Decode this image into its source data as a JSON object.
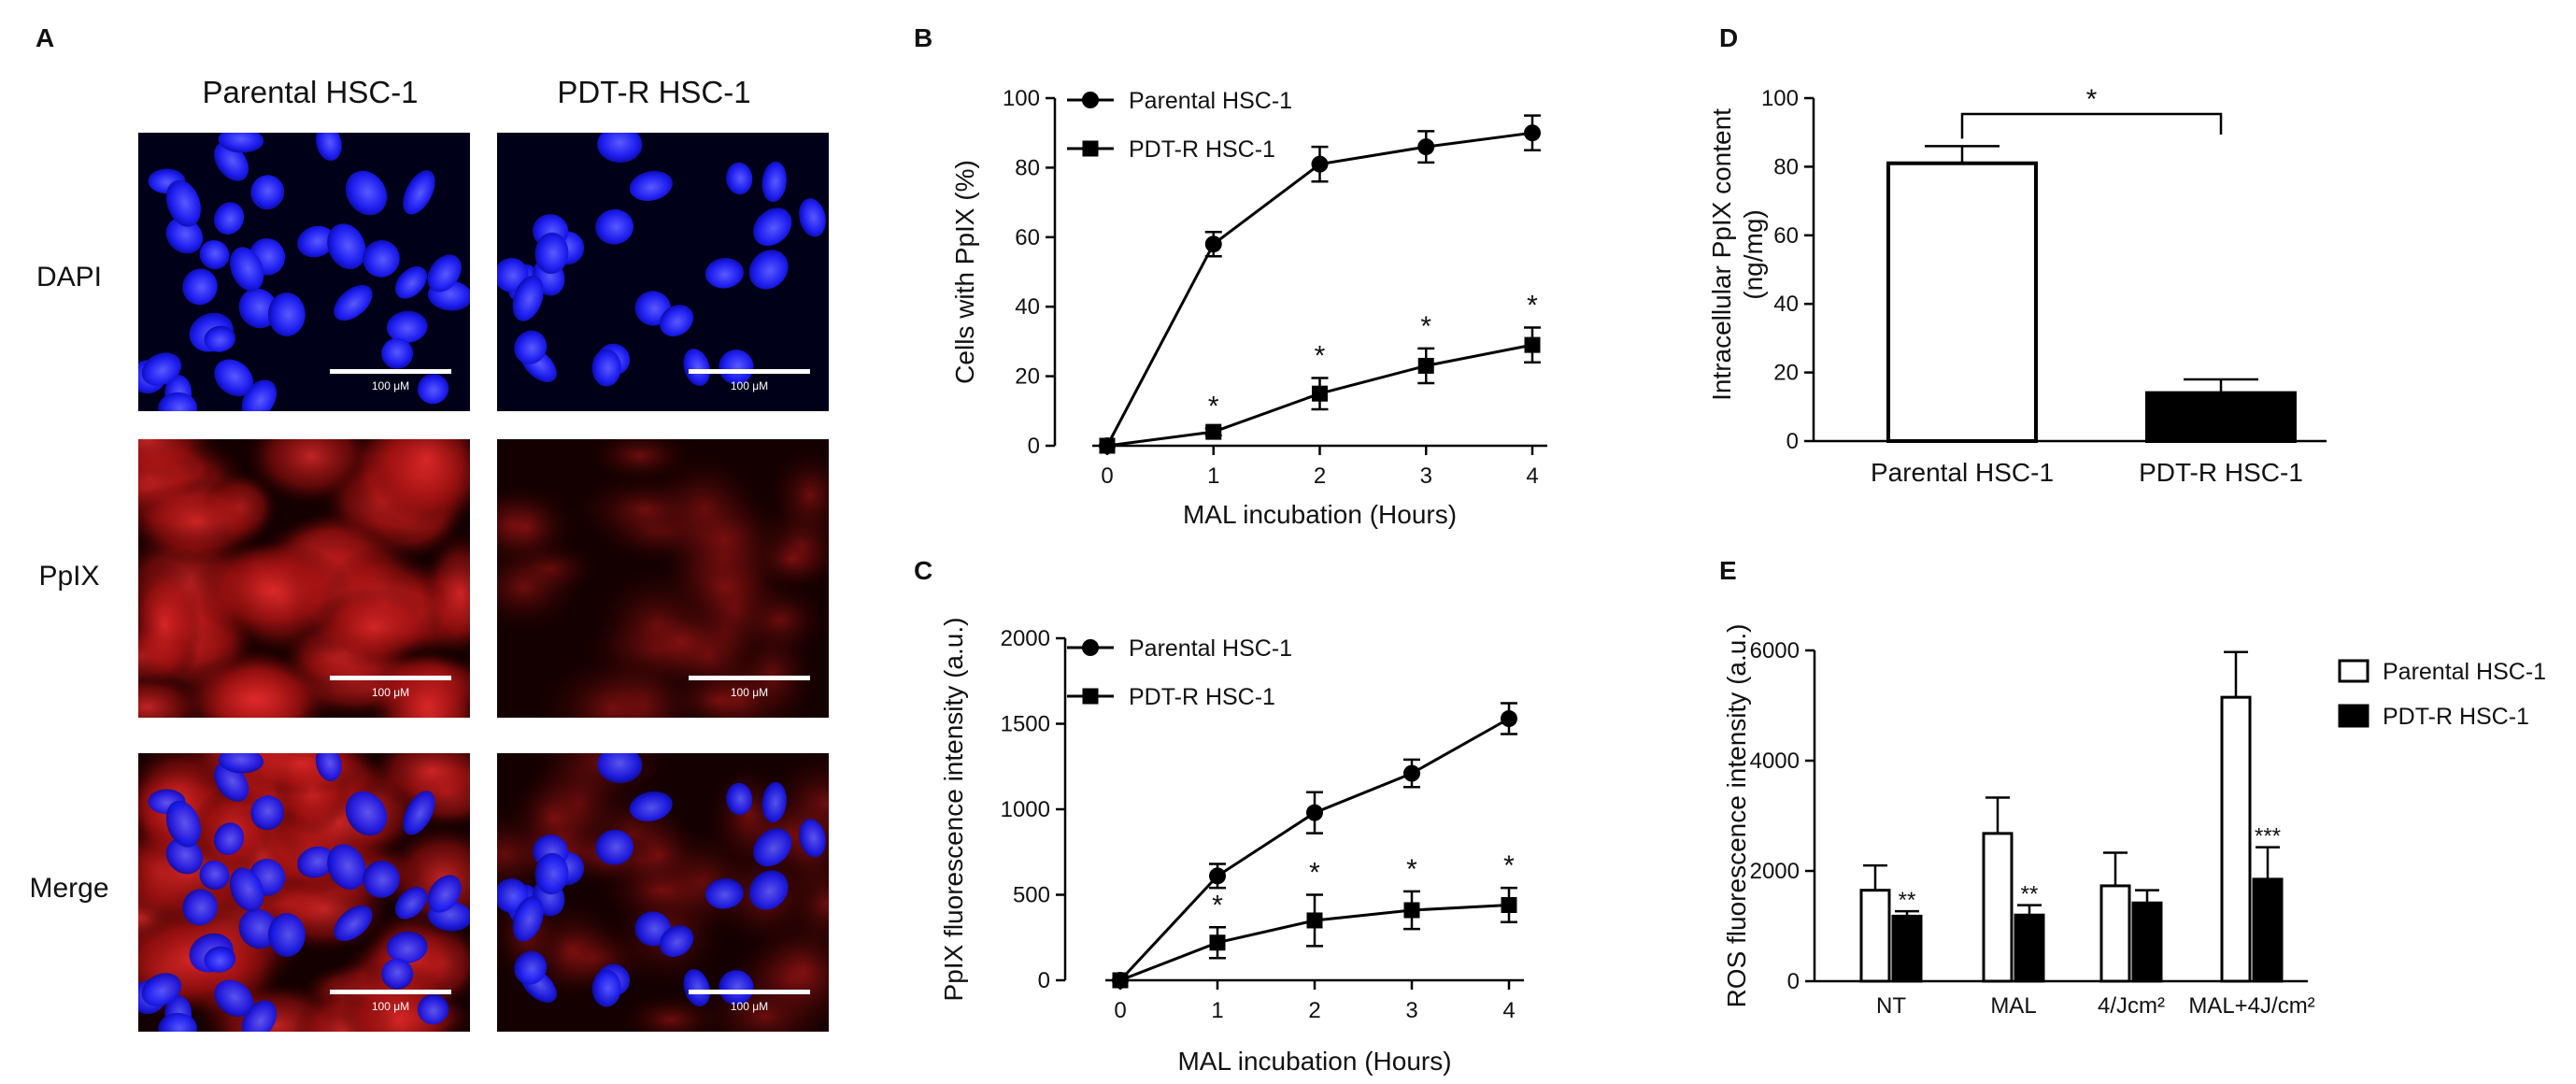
{
  "panels": {
    "a": "A",
    "b": "B",
    "c": "C",
    "d": "D",
    "e": "E"
  },
  "micrographs": {
    "columns": [
      "Parental HSC-1",
      "PDT-R HSC-1"
    ],
    "rows": [
      "DAPI",
      "PpIX",
      "Merge"
    ],
    "scale_bar_label": "100 μM",
    "colors": {
      "dapi": "#1a1aff",
      "ppix": "#c0161c",
      "background": "#000010"
    }
  },
  "chart_data": [
    {
      "panel": "B",
      "type": "line",
      "xlabel": "MAL incubation (Hours)",
      "ylabel": "Cells with PpIX (%)",
      "x": [
        0,
        1,
        2,
        3,
        4
      ],
      "xlim": [
        0,
        4
      ],
      "ylim": [
        0,
        100
      ],
      "yticks": [
        0,
        20,
        40,
        60,
        80,
        100
      ],
      "series": [
        {
          "name": "Parental  HSC-1",
          "marker": "circle",
          "values": [
            0,
            58,
            81,
            86,
            90
          ],
          "errors": [
            0,
            3.5,
            5,
            4.5,
            5
          ],
          "significance": [
            "",
            "",
            "",
            "",
            ""
          ]
        },
        {
          "name": "PDT-R HSC-1",
          "marker": "square",
          "values": [
            0,
            4,
            15,
            23,
            29
          ],
          "errors": [
            0,
            1,
            4.5,
            5,
            5
          ],
          "significance": [
            "",
            "*",
            "*",
            "*",
            "*"
          ]
        }
      ],
      "legend": "top-left"
    },
    {
      "panel": "C",
      "type": "line",
      "xlabel": "MAL incubation (Hours)",
      "ylabel": "PpIX fluorescence intensity (a.u.)",
      "x": [
        0,
        1,
        2,
        3,
        4
      ],
      "xlim": [
        0,
        4
      ],
      "ylim": [
        0,
        2000
      ],
      "yticks": [
        0,
        500,
        1000,
        1500,
        2000
      ],
      "series": [
        {
          "name": "Parental  HSC-1",
          "marker": "circle",
          "values": [
            0,
            610,
            980,
            1210,
            1530
          ],
          "errors": [
            0,
            70,
            120,
            80,
            90
          ],
          "significance": [
            "",
            "",
            "",
            "",
            ""
          ]
        },
        {
          "name": "PDT-R HSC-1",
          "marker": "square",
          "values": [
            0,
            220,
            350,
            410,
            440
          ],
          "errors": [
            0,
            90,
            150,
            110,
            100
          ],
          "significance": [
            "",
            "*",
            "*",
            "*",
            "*"
          ]
        }
      ],
      "legend": "top-left"
    },
    {
      "panel": "D",
      "type": "bar",
      "xlabel": "",
      "ylabel": "Intracellular PpIX content (ng/mg)",
      "categories": [
        "Parental HSC-1",
        "PDT-R HSC-1"
      ],
      "values": [
        81,
        14
      ],
      "errors": [
        5,
        4
      ],
      "fills": [
        "#ffffff",
        "#000000"
      ],
      "ylim": [
        0,
        100
      ],
      "yticks": [
        0,
        20,
        40,
        60,
        80,
        100
      ],
      "significance_bracket": "*"
    },
    {
      "panel": "E",
      "type": "bar",
      "xlabel": "",
      "ylabel": "ROS fluorescence intensity (a.u.)",
      "categories": [
        "NT",
        "MAL",
        "4/Jcm²",
        "MAL+4J/cm²"
      ],
      "series": [
        {
          "name": "Parental HSC-1",
          "fill": "#ffffff",
          "values": [
            1650,
            2680,
            1730,
            5150
          ],
          "errors": [
            450,
            650,
            600,
            820
          ],
          "significance": [
            "",
            "",
            "",
            ""
          ]
        },
        {
          "name": "PDT-R HSC-1",
          "fill": "#000000",
          "values": [
            1180,
            1200,
            1420,
            1850
          ],
          "errors": [
            90,
            180,
            230,
            580
          ],
          "significance": [
            "**",
            "**",
            "",
            "***"
          ]
        }
      ],
      "ylim": [
        0,
        6000
      ],
      "yticks": [
        0,
        2000,
        4000,
        6000
      ],
      "legend": "top-right"
    }
  ]
}
